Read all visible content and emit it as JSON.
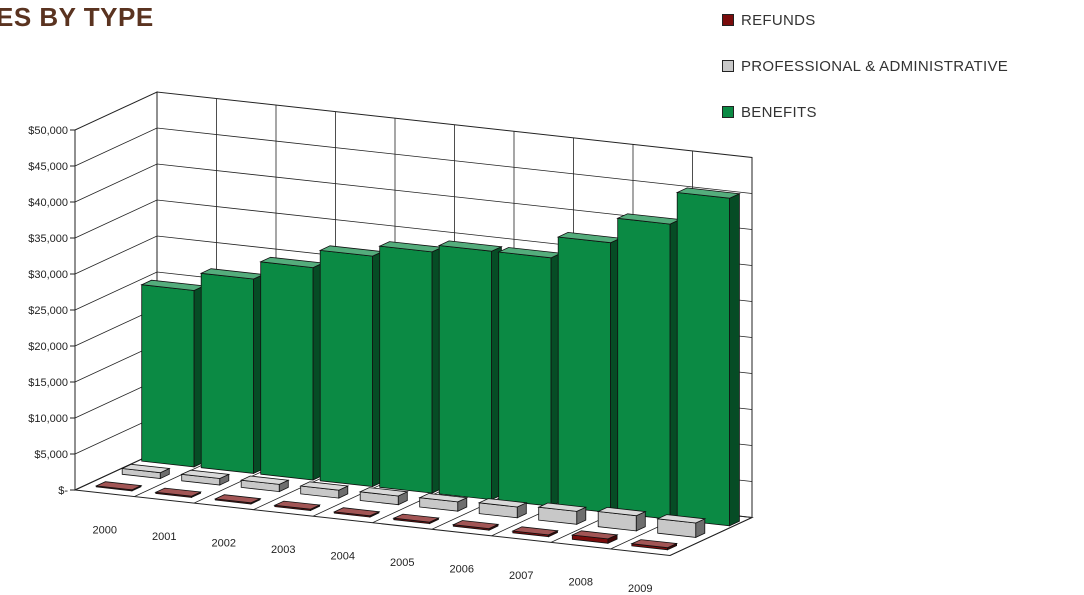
{
  "page": {
    "title": "ES BY TYPE"
  },
  "chart_data": {
    "type": "bar",
    "categories": [
      "2000",
      "2001",
      "2002",
      "2003",
      "2004",
      "2005",
      "2006",
      "2007",
      "2008",
      "2009"
    ],
    "ylim": [
      0,
      50000
    ],
    "yticks": [
      0,
      5000,
      10000,
      15000,
      20000,
      25000,
      30000,
      35000,
      40000,
      45000,
      50000
    ],
    "ytick_labels": [
      "$-",
      "$5,000",
      "$10,000",
      "$15,000",
      "$20,000",
      "$25,000",
      "$30,000",
      "$35,000",
      "$40,000",
      "$45,000",
      "$50,000"
    ],
    "legend_position": "top-right",
    "grid": true,
    "series": [
      {
        "name": "REFUNDS",
        "color": "#7a0c0c",
        "values": [
          150,
          170,
          160,
          180,
          170,
          200,
          220,
          250,
          600,
          300
        ]
      },
      {
        "name": "PROFESSIONAL & ADMINISTRATIVE",
        "color": "#c8c8c8",
        "values": [
          800,
          900,
          1000,
          1100,
          1200,
          1300,
          1500,
          1800,
          2100,
          2000
        ]
      },
      {
        "name": "BENEFITS",
        "color": "#0b8a44",
        "values": [
          24500,
          27000,
          29500,
          32000,
          33500,
          34500,
          34500,
          37500,
          41000,
          45500
        ]
      }
    ]
  }
}
